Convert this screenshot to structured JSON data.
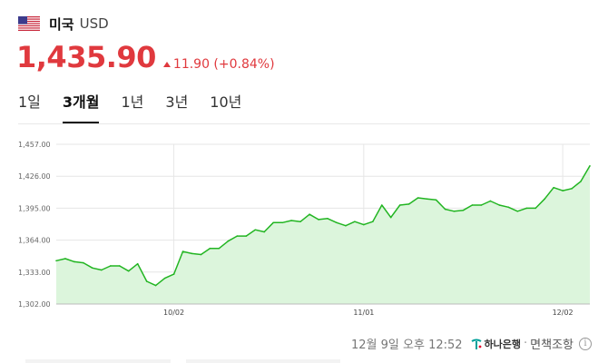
{
  "header": {
    "flag_icon": "us-flag-icon",
    "country": "미국",
    "currency": "USD"
  },
  "quote": {
    "price": "1,435.90",
    "change": "11.90 (+0.84%)",
    "direction": "up",
    "color": "#e0393e"
  },
  "tabs": [
    {
      "label": "1일",
      "active": false
    },
    {
      "label": "3개월",
      "active": true
    },
    {
      "label": "1년",
      "active": false
    },
    {
      "label": "3년",
      "active": false
    },
    {
      "label": "10년",
      "active": false
    }
  ],
  "chart_data": {
    "type": "area",
    "line_color": "#22b522",
    "fill_color": "#dcf5dc",
    "grid": true,
    "ylim": [
      1302.0,
      1457.0
    ],
    "yticks": [
      "1,457.00",
      "1,426.00",
      "1,395.00",
      "1,364.00",
      "1,333.00",
      "1,302.00"
    ],
    "ytick_values": [
      1457,
      1426,
      1395,
      1364,
      1333,
      1302
    ],
    "xticks": [
      {
        "label": "10/02",
        "index": 13
      },
      {
        "label": "11/01",
        "index": 34
      },
      {
        "label": "12/02",
        "index": 56
      }
    ],
    "values": [
      1344,
      1346,
      1343,
      1342,
      1337,
      1335,
      1339,
      1339,
      1334,
      1341,
      1324,
      1320,
      1327,
      1331,
      1353,
      1351,
      1350,
      1356,
      1356,
      1363,
      1368,
      1368,
      1374,
      1372,
      1381,
      1381,
      1383,
      1382,
      1389,
      1384,
      1385,
      1381,
      1378,
      1382,
      1379,
      1382,
      1398,
      1386,
      1398,
      1399,
      1405,
      1404,
      1403,
      1394,
      1392,
      1393,
      1398,
      1398,
      1402,
      1398,
      1396,
      1392,
      1395,
      1395,
      1404,
      1415,
      1412,
      1414,
      1421,
      1436
    ]
  },
  "footer": {
    "timestamp": "12월 9일 오후 12:52",
    "bank": "하나은행",
    "separator": "·",
    "disclaimer": "면책조항",
    "info_icon": "info-icon"
  }
}
